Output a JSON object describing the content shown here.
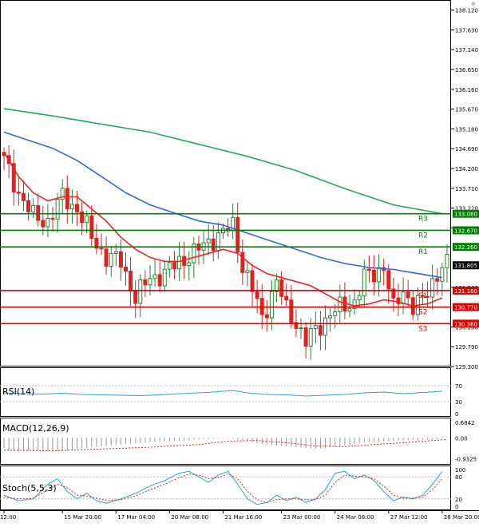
{
  "chart_data": [
    {
      "type": "candlestick",
      "ylim": [
        129.3,
        138.37
      ],
      "y_ticks": [
        "138.120",
        "137.630",
        "137.140",
        "136.650",
        "136.160",
        "135.670",
        "135.180",
        "134.690",
        "134.200",
        "133.710",
        "133.220",
        "132.730",
        "131.260",
        "130.280",
        "129.790",
        "129.300"
      ],
      "x_ticks": [
        "12:00",
        "15 Mar 20:00",
        "17 Mar 04:00",
        "20 Mar 08:00",
        "21 Mar 16:00",
        "23 Mar 00:00",
        "24 Mar 08:00",
        "27 Mar 12:00",
        "28 Mar 20:00"
      ],
      "x_tick_positions": [
        0,
        12,
        23,
        34,
        45,
        57,
        68,
        79,
        90
      ],
      "n_bars": 92,
      "current_price": "131.805",
      "levels": [
        {
          "label": "R3",
          "value": 133.08,
          "tag": "133.080",
          "color": "#008000"
        },
        {
          "label": "R2",
          "value": 132.67,
          "tag": "132.670",
          "color": "#008000"
        },
        {
          "label": "R1",
          "value": 132.26,
          "tag": "132.260",
          "color": "#008000"
        },
        {
          "label": "S1",
          "value": 131.18,
          "tag": "131.180",
          "color": "#dd0000"
        },
        {
          "label": "S2",
          "value": 130.77,
          "tag": "130.770",
          "color": "#dd0000"
        },
        {
          "label": "S3",
          "value": 130.36,
          "tag": "130.360",
          "color": "#dd0000"
        }
      ],
      "close_points": [
        [
          0,
          134.4
        ],
        [
          3,
          133.6
        ],
        [
          6,
          133.0
        ],
        [
          9,
          132.9
        ],
        [
          12,
          133.5
        ],
        [
          15,
          133.2
        ],
        [
          18,
          132.5
        ],
        [
          21,
          132.0
        ],
        [
          24,
          131.9
        ],
        [
          27,
          131.0
        ],
        [
          30,
          131.5
        ],
        [
          33,
          131.6
        ],
        [
          36,
          131.9
        ],
        [
          39,
          132.1
        ],
        [
          42,
          132.4
        ],
        [
          45,
          132.6
        ],
        [
          47,
          132.8
        ],
        [
          49,
          131.8
        ],
        [
          51,
          131.2
        ],
        [
          53,
          130.5
        ],
        [
          56,
          131.4
        ],
        [
          58,
          130.7
        ],
        [
          60,
          130.4
        ],
        [
          62,
          129.9
        ],
        [
          64,
          130.2
        ],
        [
          67,
          130.6
        ],
        [
          70,
          130.8
        ],
        [
          72,
          130.9
        ],
        [
          74,
          131.5
        ],
        [
          76,
          131.6
        ],
        [
          78,
          131.8
        ],
        [
          80,
          130.7
        ],
        [
          82,
          131.2
        ],
        [
          84,
          130.8
        ],
        [
          86,
          130.9
        ],
        [
          88,
          131.4
        ],
        [
          90,
          131.8
        ]
      ],
      "series": [
        {
          "values": [
            [
              0,
              135.68
            ],
            [
              10,
              135.5
            ],
            [
              20,
              135.3
            ],
            [
              30,
              135.1
            ],
            [
              40,
              134.8
            ],
            [
              50,
              134.5
            ],
            [
              60,
              134.15
            ],
            [
              70,
              133.7
            ],
            [
              80,
              133.3
            ],
            [
              90,
              133.08
            ]
          ],
          "color": "#22aa55"
        },
        {
          "values": [
            [
              0,
              135.1
            ],
            [
              5,
              134.9
            ],
            [
              10,
              134.7
            ],
            [
              15,
              134.4
            ],
            [
              20,
              134.0
            ],
            [
              25,
              133.6
            ],
            [
              30,
              133.3
            ],
            [
              35,
              133.1
            ],
            [
              40,
              132.9
            ],
            [
              45,
              132.8
            ],
            [
              50,
              132.6
            ],
            [
              55,
              132.4
            ],
            [
              60,
              132.2
            ],
            [
              65,
              132.0
            ],
            [
              70,
              131.85
            ],
            [
              75,
              131.75
            ],
            [
              80,
              131.7
            ],
            [
              85,
              131.6
            ],
            [
              90,
              131.5
            ]
          ],
          "color": "#3366dd"
        },
        {
          "values": [
            [
              0,
              134.6
            ],
            [
              3,
              134.0
            ],
            [
              6,
              133.6
            ],
            [
              9,
              133.4
            ],
            [
              12,
              133.5
            ],
            [
              15,
              133.5
            ],
            [
              18,
              133.2
            ],
            [
              21,
              132.9
            ],
            [
              24,
              132.5
            ],
            [
              27,
              132.2
            ],
            [
              30,
              132.0
            ],
            [
              33,
              131.9
            ],
            [
              36,
              131.9
            ],
            [
              39,
              132.0
            ],
            [
              42,
              132.1
            ],
            [
              45,
              132.2
            ],
            [
              48,
              132.1
            ],
            [
              51,
              131.8
            ],
            [
              54,
              131.6
            ],
            [
              57,
              131.5
            ],
            [
              60,
              131.4
            ],
            [
              63,
              131.3
            ],
            [
              66,
              131.1
            ],
            [
              69,
              130.9
            ],
            [
              72,
              130.8
            ],
            [
              75,
              130.85
            ],
            [
              78,
              130.95
            ],
            [
              81,
              130.9
            ],
            [
              84,
              130.8
            ],
            [
              87,
              130.85
            ],
            [
              90,
              131.0
            ]
          ],
          "color": "#ee2222"
        }
      ]
    },
    {
      "type": "line",
      "title": "RSI(14)",
      "y_ticks": [
        "70",
        "30",
        "0"
      ],
      "levels": [
        70,
        30
      ],
      "ylim": [
        0,
        100
      ],
      "series": [
        {
          "values": [
            [
              0,
              52
            ],
            [
              4,
              50
            ],
            [
              8,
              49
            ],
            [
              12,
              51
            ],
            [
              16,
              48
            ],
            [
              20,
              47
            ],
            [
              24,
              46
            ],
            [
              28,
              45
            ],
            [
              32,
              47
            ],
            [
              36,
              50
            ],
            [
              40,
              52
            ],
            [
              44,
              55
            ],
            [
              47,
              58
            ],
            [
              50,
              52
            ],
            [
              54,
              48
            ],
            [
              58,
              47
            ],
            [
              62,
              44
            ],
            [
              66,
              46
            ],
            [
              70,
              48
            ],
            [
              74,
              52
            ],
            [
              78,
              54
            ],
            [
              82,
              50
            ],
            [
              86,
              53
            ],
            [
              90,
              56
            ]
          ],
          "color": "#3399ee"
        }
      ]
    },
    {
      "type": "bar",
      "title": "MACD(12,26,9)",
      "y_ticks": [
        "0.6842",
        "0.00",
        "-0.9325"
      ],
      "ylim": [
        -1.2,
        0.9
      ],
      "values": [
        -0.45,
        -0.55,
        -0.6,
        -0.62,
        -0.6,
        -0.58,
        -0.55,
        -0.55,
        -0.55,
        -0.6,
        -0.62,
        -0.62,
        -0.6,
        -0.58,
        -0.55,
        -0.5,
        -0.48,
        -0.45,
        -0.42,
        -0.4,
        -0.38,
        -0.36,
        -0.34,
        -0.32,
        -0.3,
        -0.28,
        -0.26,
        -0.25,
        -0.24,
        -0.22,
        -0.2,
        -0.18,
        -0.17,
        -0.16,
        -0.16,
        -0.15,
        -0.14,
        -0.13,
        -0.12,
        -0.1,
        -0.08,
        -0.06,
        -0.05,
        -0.04,
        -0.03,
        -0.02,
        -0.02,
        -0.04,
        -0.08,
        -0.12,
        -0.16,
        -0.2,
        -0.24,
        -0.28,
        -0.3,
        -0.32,
        -0.34,
        -0.36,
        -0.38,
        -0.4,
        -0.42,
        -0.44,
        -0.46,
        -0.48,
        -0.48,
        -0.47,
        -0.45,
        -0.43,
        -0.4,
        -0.37,
        -0.34,
        -0.31,
        -0.28,
        -0.25,
        -0.22,
        -0.2,
        -0.18,
        -0.17,
        -0.16,
        -0.15,
        -0.14,
        -0.13,
        -0.12,
        -0.11,
        -0.1,
        -0.1,
        -0.09,
        -0.08,
        -0.07,
        -0.06,
        -0.05
      ],
      "series": [
        {
          "values": [
            [
              0,
              -0.55
            ],
            [
              10,
              -0.58
            ],
            [
              20,
              -0.5
            ],
            [
              30,
              -0.42
            ],
            [
              40,
              -0.3
            ],
            [
              46,
              -0.15
            ],
            [
              52,
              -0.12
            ],
            [
              58,
              -0.22
            ],
            [
              64,
              -0.36
            ],
            [
              70,
              -0.4
            ],
            [
              76,
              -0.3
            ],
            [
              82,
              -0.22
            ],
            [
              88,
              -0.12
            ],
            [
              91,
              -0.08
            ]
          ],
          "color": "#dd2222"
        }
      ]
    },
    {
      "type": "line",
      "title": "Stoch(5,5,3)",
      "y_ticks": [
        "100",
        "80",
        "20",
        "0"
      ],
      "levels": [
        80,
        20
      ],
      "ylim": [
        0,
        100
      ],
      "series": [
        {
          "values": [
            [
              0,
              30
            ],
            [
              3,
              15
            ],
            [
              6,
              20
            ],
            [
              9,
              60
            ],
            [
              11,
              75
            ],
            [
              13,
              40
            ],
            [
              15,
              20
            ],
            [
              17,
              35
            ],
            [
              19,
              15
            ],
            [
              21,
              8
            ],
            [
              24,
              20
            ],
            [
              27,
              35
            ],
            [
              30,
              55
            ],
            [
              33,
              70
            ],
            [
              36,
              90
            ],
            [
              38,
              95
            ],
            [
              40,
              80
            ],
            [
              42,
              65
            ],
            [
              44,
              85
            ],
            [
              46,
              95
            ],
            [
              48,
              60
            ],
            [
              50,
              20
            ],
            [
              52,
              5
            ],
            [
              54,
              10
            ],
            [
              56,
              30
            ],
            [
              58,
              15
            ],
            [
              60,
              25
            ],
            [
              62,
              10
            ],
            [
              64,
              20
            ],
            [
              66,
              45
            ],
            [
              68,
              90
            ],
            [
              70,
              95
            ],
            [
              72,
              75
            ],
            [
              74,
              85
            ],
            [
              76,
              70
            ],
            [
              78,
              40
            ],
            [
              80,
              15
            ],
            [
              82,
              25
            ],
            [
              84,
              20
            ],
            [
              86,
              30
            ],
            [
              88,
              60
            ],
            [
              90,
              95
            ]
          ],
          "color": "#22aacc"
        },
        {
          "values": [
            [
              0,
              25
            ],
            [
              3,
              20
            ],
            [
              6,
              22
            ],
            [
              9,
              45
            ],
            [
              11,
              60
            ],
            [
              13,
              50
            ],
            [
              15,
              30
            ],
            [
              17,
              28
            ],
            [
              19,
              22
            ],
            [
              21,
              15
            ],
            [
              24,
              18
            ],
            [
              27,
              28
            ],
            [
              30,
              45
            ],
            [
              33,
              60
            ],
            [
              36,
              78
            ],
            [
              38,
              88
            ],
            [
              40,
              85
            ],
            [
              42,
              75
            ],
            [
              44,
              78
            ],
            [
              46,
              88
            ],
            [
              48,
              75
            ],
            [
              50,
              40
            ],
            [
              52,
              18
            ],
            [
              54,
              10
            ],
            [
              56,
              18
            ],
            [
              58,
              20
            ],
            [
              60,
              20
            ],
            [
              62,
              18
            ],
            [
              64,
              18
            ],
            [
              66,
              30
            ],
            [
              68,
              65
            ],
            [
              70,
              85
            ],
            [
              72,
              82
            ],
            [
              74,
              80
            ],
            [
              76,
              75
            ],
            [
              78,
              55
            ],
            [
              80,
              30
            ],
            [
              82,
              22
            ],
            [
              84,
              22
            ],
            [
              86,
              25
            ],
            [
              88,
              45
            ],
            [
              90,
              75
            ]
          ],
          "color": "#dd2222",
          "dashed": true
        }
      ]
    }
  ]
}
